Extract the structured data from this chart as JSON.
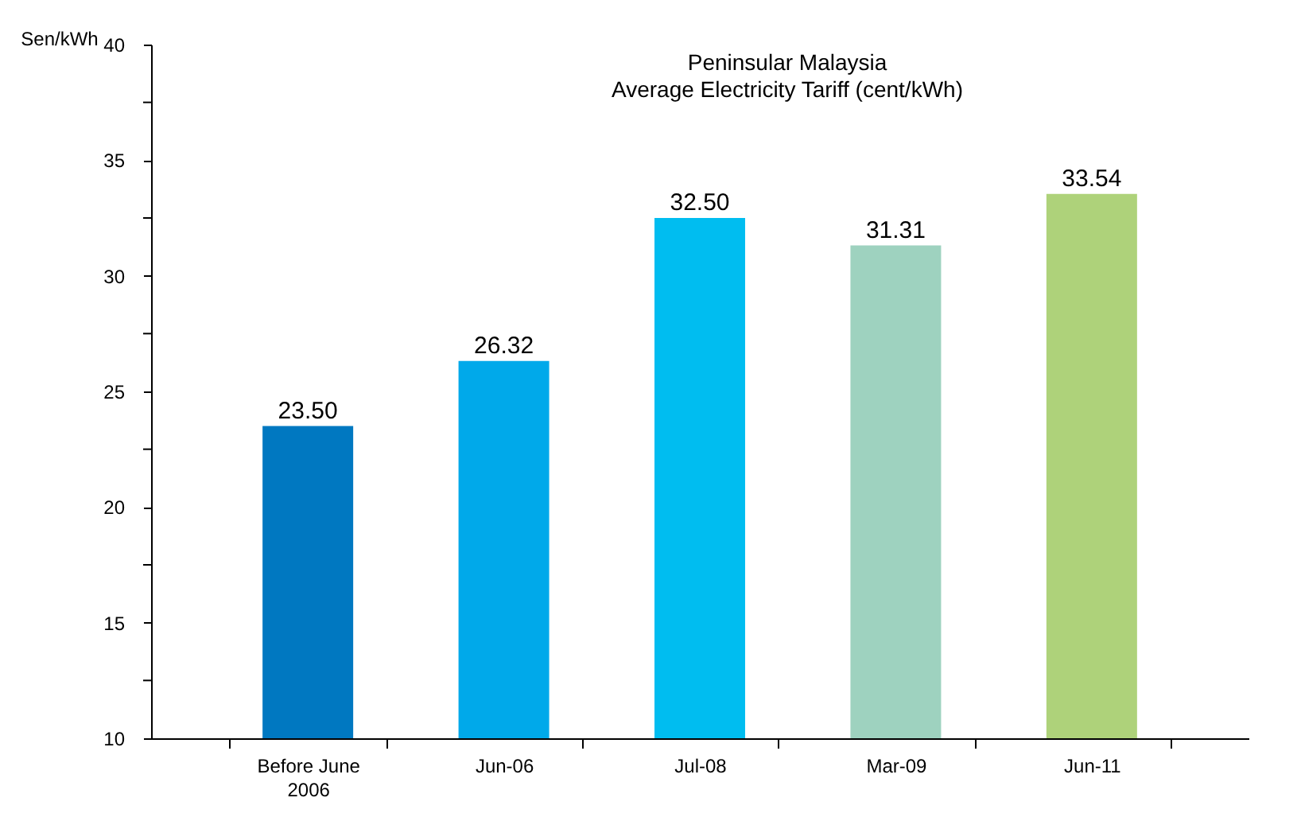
{
  "chart_data": {
    "type": "bar",
    "title": "Peninsular Malaysia",
    "subtitle": "Average Electricity Tariff (cent/kWh)",
    "ylabel": "Sen/kWh",
    "categories": [
      "Before June 2006",
      "Jun-06",
      "Jul-08",
      "Mar-09",
      "Jun-11"
    ],
    "values": [
      23.5,
      26.32,
      32.5,
      31.31,
      33.54
    ],
    "colors": [
      "#0078c1",
      "#00a9ea",
      "#00bdf0",
      "#9ed2bf",
      "#aed27a"
    ],
    "value_labels": [
      "23.50",
      "26.32",
      "32.50",
      "31.31",
      "33.54"
    ],
    "ylim": [
      10,
      40
    ],
    "yticks": [
      10,
      {
        "value": 12.5,
        "label": null
      },
      15,
      {
        "value": 17.5,
        "label": null
      },
      20,
      {
        "value": 22.5,
        "label": null
      },
      25,
      {
        "value": 27.5,
        "label": null
      },
      30,
      {
        "value": 32.5,
        "label": null
      },
      35,
      {
        "value": 37.5,
        "label": null
      },
      40
    ],
    "grid": false
  }
}
